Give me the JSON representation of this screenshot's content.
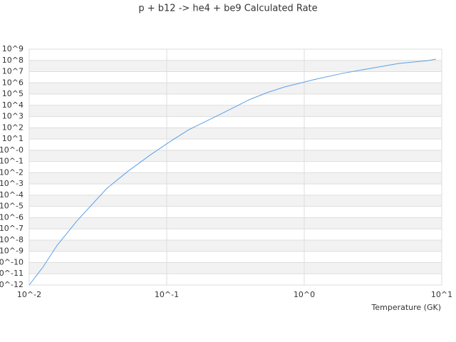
{
  "chart_data": {
    "type": "line",
    "title": "p + b12 -> he4 + be9 Calculated Rate",
    "x_label": "Temperature (GK)",
    "x": [
      0.01,
      0.0126,
      0.0159,
      0.0222,
      0.0367,
      0.0525,
      0.0752,
      0.107,
      0.145,
      0.248,
      0.399,
      0.537,
      0.724,
      1.17,
      1.88,
      3.03,
      4.89,
      7.87,
      9.08
    ],
    "series": [
      {
        "color": "#5aa0e6",
        "values": [
          1e-12,
          4e-11,
          3.2e-09,
          5e-07,
          0.0004,
          0.014,
          0.35,
          6.5,
          68,
          1700,
          32000,
          135000,
          440000,
          1900000,
          6900000,
          19500000,
          54000000,
          95000000,
          130000000
        ]
      }
    ],
    "xlog": true,
    "ylog": true,
    "xlim": [
      0.01,
      10
    ],
    "xticks": [
      {
        "value": 0.01,
        "label": "10^-2"
      },
      {
        "value": 0.1,
        "label": "10^-1"
      },
      {
        "value": 1,
        "label": "10^0"
      },
      {
        "value": 10,
        "label": "10^1"
      }
    ],
    "ylim": [
      1e-12,
      1000000000.0
    ],
    "yticks": [
      {
        "value": 1e-12,
        "label": "10^-12"
      },
      {
        "value": 1e-11,
        "label": "10^-11"
      },
      {
        "value": 1e-10,
        "label": "10^-10"
      },
      {
        "value": 1e-09,
        "label": "10^-9"
      },
      {
        "value": 1e-08,
        "label": "10^-8"
      },
      {
        "value": 1e-07,
        "label": "10^-7"
      },
      {
        "value": 1e-06,
        "label": "10^-6"
      },
      {
        "value": 1e-05,
        "label": "10^-5"
      },
      {
        "value": 0.0001,
        "label": "10^-4"
      },
      {
        "value": 0.001,
        "label": "10^-3"
      },
      {
        "value": 0.01,
        "label": "10^-2"
      },
      {
        "value": 0.1,
        "label": "10^-1"
      },
      {
        "value": 1,
        "label": "10^-0"
      },
      {
        "value": 10,
        "label": "10^1"
      },
      {
        "value": 100,
        "label": "10^2"
      },
      {
        "value": 1000,
        "label": "10^3"
      },
      {
        "value": 10000,
        "label": "10^4"
      },
      {
        "value": 100000,
        "label": "10^5"
      },
      {
        "value": 1000000,
        "label": "10^6"
      },
      {
        "value": 10000000,
        "label": "10^7"
      },
      {
        "value": 100000000,
        "label": "10^8"
      },
      {
        "value": 1000000000,
        "label": "10^9"
      }
    ],
    "grid": true
  }
}
